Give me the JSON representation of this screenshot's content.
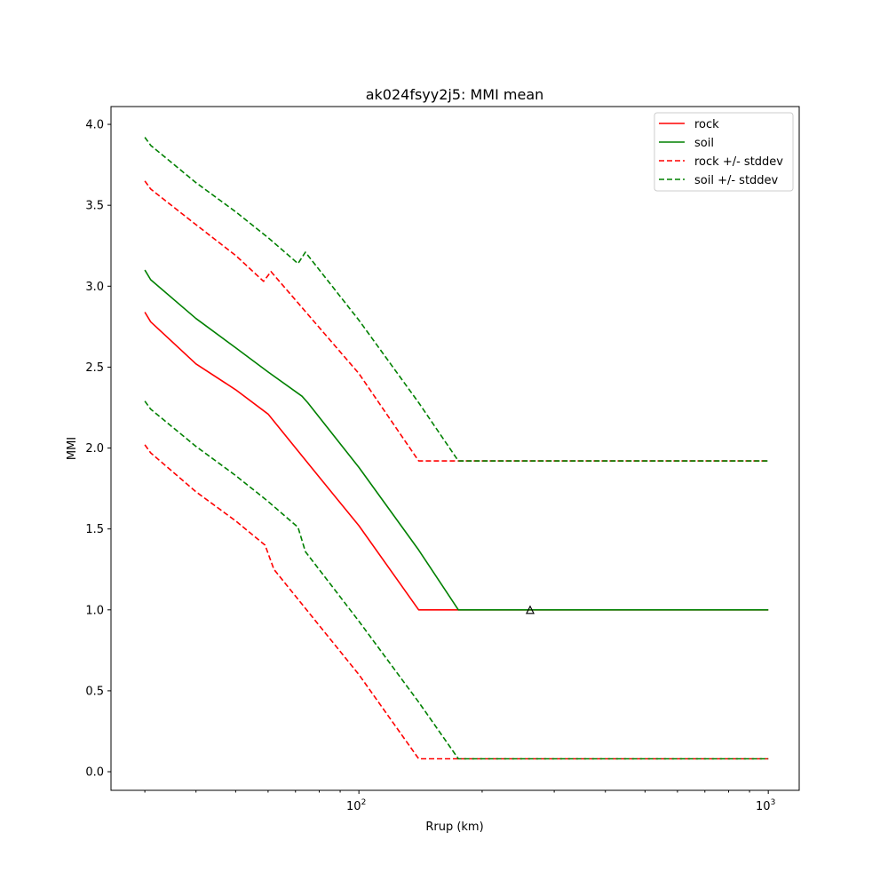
{
  "chart_data": {
    "type": "line",
    "title": "ak024fsyy2j5: MMI mean",
    "xlabel": "Rrup (km)",
    "ylabel": "MMI",
    "xscale": "log",
    "xlim": [
      24.8,
      1190
    ],
    "ylim": [
      -0.115,
      4.11
    ],
    "yticks": [
      0.0,
      0.5,
      1.0,
      1.5,
      2.0,
      2.5,
      3.0,
      3.5,
      4.0
    ],
    "ytick_labels": [
      "0.0",
      "0.5",
      "1.0",
      "1.5",
      "2.0",
      "2.5",
      "3.0",
      "3.5",
      "4.0"
    ],
    "xticks_major": [
      {
        "value": 100,
        "base": "10",
        "exp": "2"
      },
      {
        "value": 1000,
        "base": "10",
        "exp": "3"
      }
    ],
    "xticks_minor": [
      30,
      40,
      50,
      60,
      70,
      80,
      90,
      200,
      300,
      400,
      500,
      600,
      700,
      800,
      900
    ],
    "grid": false,
    "legend_position": "top-right",
    "legend": [
      {
        "label": "rock",
        "color": "#ff0000",
        "dashed": false
      },
      {
        "label": "soil",
        "color": "#008000",
        "dashed": false
      },
      {
        "label": "rock +/- stddev",
        "color": "#ff0000",
        "dashed": true
      },
      {
        "label": "soil +/- stddev",
        "color": "#008000",
        "dashed": true
      }
    ],
    "series": [
      {
        "name": "rock",
        "color": "#ff0000",
        "dashed": false,
        "x": [
          30,
          31,
          40,
          50,
          60,
          80,
          100,
          140,
          175,
          1000
        ],
        "y": [
          2.84,
          2.78,
          2.52,
          2.36,
          2.21,
          1.82,
          1.52,
          1.0,
          1.0,
          1.0
        ]
      },
      {
        "name": "soil",
        "color": "#008000",
        "dashed": false,
        "x": [
          30,
          31,
          40,
          50,
          60,
          72.6,
          75,
          100,
          140,
          175,
          1000
        ],
        "y": [
          3.1,
          3.04,
          2.8,
          2.62,
          2.47,
          2.32,
          2.28,
          1.88,
          1.37,
          1.0,
          1.0
        ]
      },
      {
        "name": "rock + stddev",
        "color": "#ff0000",
        "dashed": true,
        "x": [
          30,
          31,
          40,
          50,
          58.5,
          61,
          100,
          140,
          1000
        ],
        "y": [
          3.65,
          3.6,
          3.38,
          3.19,
          3.03,
          3.09,
          2.46,
          1.92,
          1.92
        ]
      },
      {
        "name": "rock - stddev",
        "color": "#ff0000",
        "dashed": true,
        "x": [
          30,
          31,
          40,
          50,
          59,
          62,
          100,
          140,
          1000
        ],
        "y": [
          2.02,
          1.97,
          1.73,
          1.55,
          1.4,
          1.25,
          0.6,
          0.08,
          0.08
        ]
      },
      {
        "name": "soil + stddev",
        "color": "#008000",
        "dashed": true,
        "x": [
          30,
          31,
          40,
          50,
          60,
          71,
          74,
          100,
          140,
          175,
          1000
        ],
        "y": [
          3.92,
          3.87,
          3.64,
          3.46,
          3.3,
          3.14,
          3.21,
          2.79,
          2.28,
          1.92,
          1.92
        ]
      },
      {
        "name": "soil - stddev",
        "color": "#008000",
        "dashed": true,
        "x": [
          30,
          31,
          40,
          50,
          60,
          71,
          74,
          100,
          140,
          175,
          1000
        ],
        "y": [
          2.29,
          2.24,
          2.01,
          1.83,
          1.67,
          1.51,
          1.36,
          0.93,
          0.43,
          0.08,
          0.08
        ]
      }
    ],
    "markers": [
      {
        "name": "triangle-marker",
        "shape": "triangle-open",
        "x": 262,
        "y": 1.0,
        "color": "#000000"
      }
    ]
  }
}
